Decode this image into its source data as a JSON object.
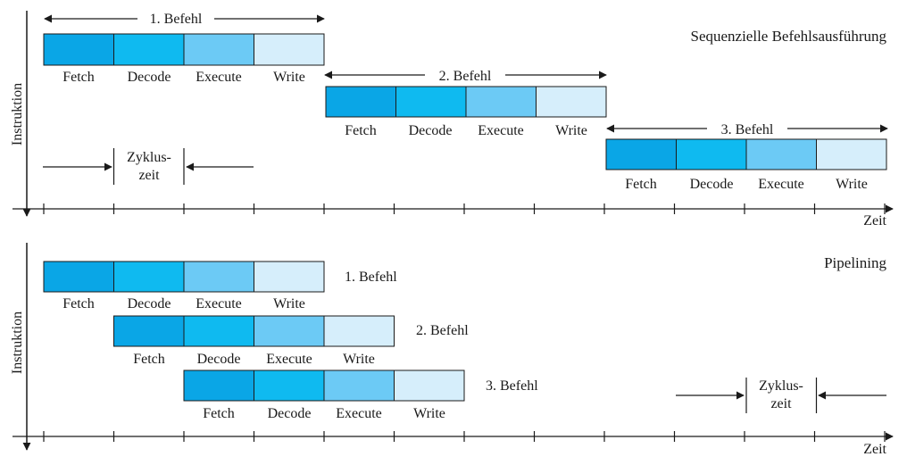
{
  "stage_colors": [
    "#0aa6e6",
    "#0fbaf0",
    "#6ccaf5",
    "#d6eefb"
  ],
  "stroke_color": "#1a1a1a",
  "sequential": {
    "title": "Sequenzielle Befehlsausführung",
    "y_label": "Instruktion",
    "x_label": "Zeit",
    "instructions": [
      {
        "label": "1. Befehl",
        "stages": [
          "Fetch",
          "Decode",
          "Execute",
          "Write"
        ]
      },
      {
        "label": "2. Befehl",
        "stages": [
          "Fetch",
          "Decode",
          "Execute",
          "Write"
        ]
      },
      {
        "label": "3. Befehl",
        "stages": [
          "Fetch",
          "Decode",
          "Execute",
          "Write"
        ]
      }
    ],
    "cycle_label_line1": "Zyklus-",
    "cycle_label_line2": "zeit"
  },
  "pipelining": {
    "title": "Pipelining",
    "y_label": "Instruktion",
    "x_label": "Zeit",
    "instructions": [
      {
        "label": "1. Befehl",
        "stages": [
          "Fetch",
          "Decode",
          "Execute",
          "Write"
        ]
      },
      {
        "label": "2. Befehl",
        "stages": [
          "Fetch",
          "Decode",
          "Execute",
          "Write"
        ]
      },
      {
        "label": "3. Befehl",
        "stages": [
          "Fetch",
          "Decode",
          "Execute",
          "Write"
        ]
      }
    ],
    "cycle_label_line1": "Zyklus-",
    "cycle_label_line2": "zeit"
  }
}
